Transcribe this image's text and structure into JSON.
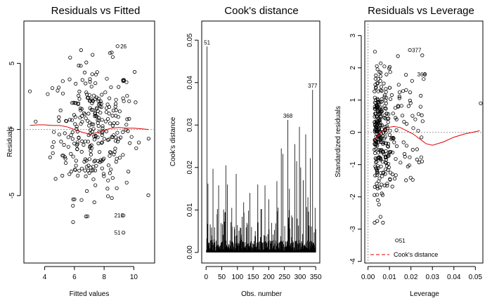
{
  "colors": {
    "smooth": "#e00000",
    "reference": "#9a9a9a",
    "points": "#000000"
  },
  "chart_data": [
    {
      "type": "scatter",
      "title": "Residuals vs Fitted",
      "xlabel": "Fitted values",
      "ylabel": "Residuals",
      "xlim": [
        2.6,
        11.4
      ],
      "ylim": [
        -10.1,
        8.2
      ],
      "xticks": [
        4,
        6,
        8,
        10
      ],
      "yticks": [
        -5,
        0,
        5
      ],
      "reference_line": 0,
      "labeled_points": [
        {
          "label": "26",
          "x": 8.9,
          "y": 6.3
        },
        {
          "label": "210",
          "x": 9.3,
          "y": -6.5
        },
        {
          "label": "51",
          "x": 9.3,
          "y": -7.8
        }
      ],
      "smooth": {
        "x": [
          3.0,
          3.5,
          4.0,
          4.5,
          5.0,
          5.5,
          6.0,
          6.5,
          7.0,
          7.5,
          8.0,
          8.5,
          9.0,
          9.5,
          10.0,
          10.5,
          11.0
        ],
        "y": [
          0.3,
          0.35,
          0.35,
          0.3,
          0.3,
          0.2,
          0.0,
          -0.2,
          -0.35,
          -0.25,
          -0.05,
          0.1,
          0.15,
          0.1,
          0.1,
          0.05,
          0.0
        ]
      },
      "points_n": 300
    },
    {
      "type": "bar",
      "title": "Cook's distance",
      "xlabel": "Obs. number",
      "ylabel": "Cook's distance",
      "xlim": [
        -14,
        363
      ],
      "ylim": [
        -0.0025,
        0.0545
      ],
      "xticks": [
        0,
        50,
        100,
        150,
        200,
        250,
        300,
        350
      ],
      "yticks": [
        0.0,
        0.01,
        0.02,
        0.03,
        0.04,
        0.05
      ],
      "ytick_labels": [
        "0.00",
        "0.01",
        "0.02",
        "0.03",
        "0.04",
        "0.05"
      ],
      "labeled_points": [
        {
          "label": "51",
          "x": 3,
          "y": 0.0485
        },
        {
          "label": "368",
          "x": 261,
          "y": 0.0312
        },
        {
          "label": "377",
          "x": 340,
          "y": 0.0383
        }
      ],
      "major_bars": [
        {
          "x": 3,
          "y": 0.0485
        },
        {
          "x": 261,
          "y": 0.0312
        },
        {
          "x": 340,
          "y": 0.0383
        },
        {
          "x": 298,
          "y": 0.0296
        },
        {
          "x": 318,
          "y": 0.0278
        },
        {
          "x": 283,
          "y": 0.0255
        },
        {
          "x": 240,
          "y": 0.0245
        },
        {
          "x": 245,
          "y": 0.0232
        },
        {
          "x": 22,
          "y": 0.0197
        },
        {
          "x": 63,
          "y": 0.0205
        },
        {
          "x": 333,
          "y": 0.0222
        },
        {
          "x": 289,
          "y": 0.0215
        },
        {
          "x": 96,
          "y": 0.0185
        },
        {
          "x": 302,
          "y": 0.02
        },
        {
          "x": 6,
          "y": 0.0162
        },
        {
          "x": 40,
          "y": 0.0158
        },
        {
          "x": 68,
          "y": 0.016
        },
        {
          "x": 165,
          "y": 0.016
        },
        {
          "x": 188,
          "y": 0.0158
        },
        {
          "x": 226,
          "y": 0.0168
        },
        {
          "x": 310,
          "y": 0.017
        },
        {
          "x": 266,
          "y": 0.015
        },
        {
          "x": 140,
          "y": 0.014
        },
        {
          "x": 120,
          "y": 0.0118
        },
        {
          "x": 200,
          "y": 0.0125
        },
        {
          "x": 175,
          "y": 0.0102
        },
        {
          "x": 82,
          "y": 0.0105
        },
        {
          "x": 35,
          "y": 0.009
        },
        {
          "x": 325,
          "y": 0.013
        },
        {
          "x": 348,
          "y": 0.0105
        }
      ],
      "n_obs": 350
    },
    {
      "type": "scatter",
      "title": "Residuals vs Leverage",
      "xlabel": "Leverage",
      "ylabel": "Standardized residuals",
      "xlim": [
        -0.0015,
        0.0535
      ],
      "ylim": [
        -4.05,
        3.45
      ],
      "xticks": [
        0.0,
        0.01,
        0.02,
        0.03,
        0.04,
        0.05
      ],
      "xtick_labels": [
        "0.00",
        "0.01",
        "0.02",
        "0.03",
        "0.04",
        "0.05"
      ],
      "yticks": [
        -4,
        -3,
        -2,
        -1,
        0,
        1,
        2,
        3
      ],
      "reference_line": 0,
      "legend": {
        "label": "Cook's distance",
        "placement": "bottom-left"
      },
      "labeled_points": [
        {
          "label": "377",
          "x": 0.0195,
          "y": 2.55
        },
        {
          "label": "368",
          "x": 0.0265,
          "y": 1.8
        },
        {
          "label": "51",
          "x": 0.0135,
          "y": -3.35
        }
      ],
      "smooth": {
        "x": [
          0.003,
          0.005,
          0.007,
          0.009,
          0.012,
          0.015,
          0.018,
          0.021,
          0.024,
          0.027,
          0.03,
          0.035,
          0.04,
          0.045,
          0.05,
          0.052
        ],
        "y": [
          -0.25,
          -0.05,
          0.05,
          0.15,
          0.18,
          0.15,
          0.05,
          -0.05,
          -0.2,
          -0.35,
          -0.4,
          -0.3,
          -0.15,
          -0.05,
          0.02,
          0.05
        ]
      },
      "points_n": 330
    }
  ]
}
